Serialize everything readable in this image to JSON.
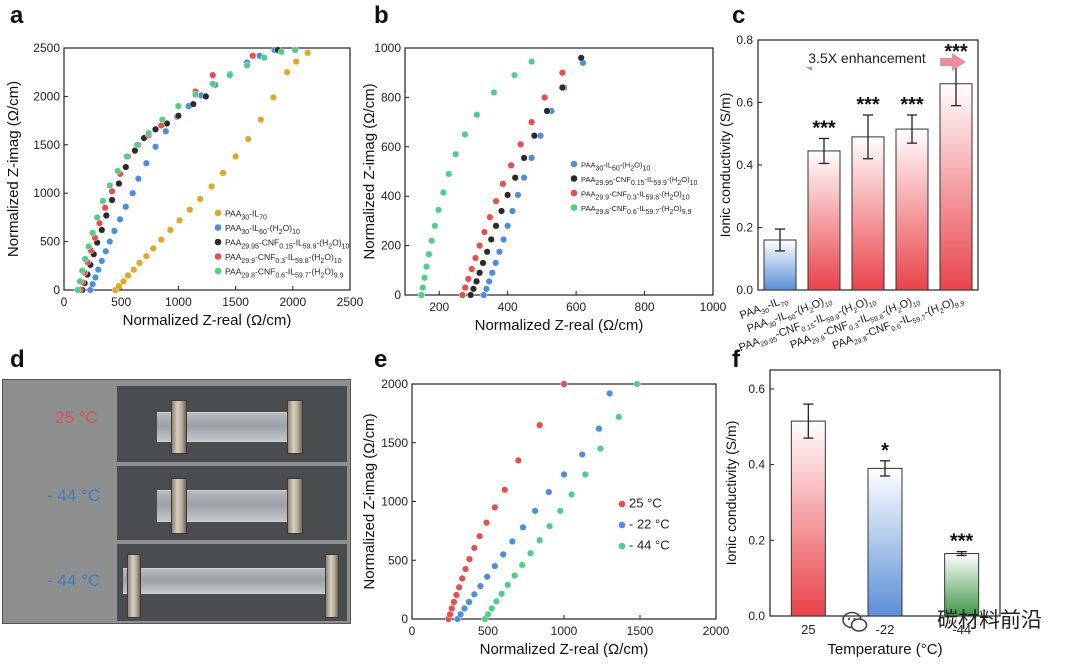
{
  "panels": {
    "a": "a",
    "b": "b",
    "c": "c",
    "d": "d",
    "e": "e",
    "f": "f"
  },
  "photo": {
    "labels": [
      {
        "text": "25 °C",
        "color": "#e0504a"
      },
      {
        "text": "- 44 °C",
        "color": "#3f7bbf"
      },
      {
        "text": "- 44 °C",
        "color": "#3f7bbf"
      }
    ]
  },
  "watermark": {
    "text": "碳材料前沿",
    "icon": "wechat-icon"
  },
  "colors": {
    "yellow": "#e3a81e",
    "blue": "#4a8ee0",
    "black": "#2a2a2a",
    "red": "#ec4b4b",
    "green": "#4fcf86",
    "bar_red": "#e9424a",
    "bar_blue": "#5b8fd8",
    "bar_green": "#3f9448"
  },
  "chart_data": [
    {
      "type": "scatter",
      "panel": "a",
      "xlabel": "Normalized Z-real (Ω/cm)",
      "ylabel": "Normalized Z-imag (Ω/cm)",
      "xlim": [
        0,
        2500
      ],
      "ylim": [
        0,
        2500
      ],
      "xticks": [
        "0",
        "500",
        "1000",
        "1500",
        "2000",
        "2500"
      ],
      "yticks": [
        "0",
        "500",
        "1000",
        "1500",
        "2000",
        "2500"
      ],
      "legend_position": "center-right",
      "series": [
        {
          "name": "PAA30-IL70",
          "label_main": "PAA",
          "label_sub": "30",
          "label_rest": "-IL",
          "label_sub2": "70",
          "color": "#e3a81e",
          "x": [
            450,
            480,
            520,
            560,
            610,
            660,
            720,
            780,
            850,
            930,
            1010,
            1100,
            1190,
            1290,
            1390,
            1500,
            1610,
            1720,
            1830,
            1950,
            2030,
            2130
          ],
          "y": [
            0,
            40,
            90,
            150,
            210,
            280,
            350,
            430,
            520,
            620,
            720,
            830,
            940,
            1070,
            1210,
            1380,
            1560,
            1760,
            1990,
            2250,
            2360,
            2450
          ]
        },
        {
          "name": "PAA30-IL60-(H2O)10",
          "color": "#4a8ee0",
          "x": [
            230,
            250,
            275,
            300,
            330,
            365,
            400,
            440,
            490,
            540,
            600,
            650,
            720,
            800,
            890,
            990,
            1090,
            1200,
            1320,
            1450,
            1600,
            1710,
            1840
          ],
          "y": [
            0,
            60,
            130,
            210,
            300,
            400,
            500,
            610,
            730,
            860,
            1000,
            1150,
            1310,
            1480,
            1640,
            1790,
            1900,
            2010,
            2120,
            2230,
            2350,
            2420,
            2480
          ]
        },
        {
          "name": "PAA29.95-CNF0.15-IL59.9-(H2O)10",
          "color": "#2a2a2a",
          "x": [
            160,
            180,
            205,
            230,
            260,
            290,
            330,
            370,
            420,
            480,
            540,
            620,
            700,
            800,
            900,
            1000,
            1130,
            1240,
            1870
          ],
          "y": [
            0,
            70,
            160,
            260,
            370,
            490,
            620,
            770,
            930,
            1100,
            1270,
            1440,
            1570,
            1660,
            1720,
            1800,
            1920,
            2000,
            2480
          ]
        },
        {
          "name": "PAA29.9-CNF0.3-IL59.8-(H2O)10",
          "color": "#ec4b4b",
          "x": [
            140,
            160,
            180,
            205,
            235,
            270,
            310,
            360,
            420,
            490,
            560,
            650,
            740,
            850,
            1000,
            1150,
            1300,
            1650
          ],
          "y": [
            0,
            80,
            180,
            290,
            410,
            540,
            690,
            850,
            1020,
            1200,
            1380,
            1500,
            1600,
            1700,
            1900,
            2050,
            2220,
            2420
          ]
        },
        {
          "name": "PAA29.8-CNF0.6-IL59.7-(H2O)9.9",
          "color": "#4fcf86",
          "x": [
            120,
            140,
            160,
            185,
            215,
            250,
            290,
            340,
            400,
            470,
            550,
            640,
            740,
            860,
            1000,
            1150,
            1300,
            1450,
            1600,
            1750,
            1900,
            2020
          ],
          "y": [
            0,
            90,
            200,
            320,
            450,
            590,
            750,
            920,
            1080,
            1230,
            1380,
            1500,
            1620,
            1760,
            1900,
            2020,
            2130,
            2220,
            2320,
            2400,
            2460,
            2480
          ]
        }
      ]
    },
    {
      "type": "scatter",
      "panel": "b",
      "xlabel": "Normalized Z-real (Ω/cm)",
      "ylabel": "Normalized Z-imag (Ω/cm)",
      "xlim": [
        100,
        1000
      ],
      "ylim": [
        0,
        1000
      ],
      "xticks": [
        "200",
        "400",
        "600",
        "800",
        "1000"
      ],
      "yticks": [
        "0",
        "200",
        "400",
        "600",
        "800",
        "1000"
      ],
      "legend_position": "center-right",
      "series": [
        {
          "name": "PAA30-IL60-(H2O)10",
          "color": "#4a8ee0",
          "x": [
            330,
            338,
            346,
            355,
            365,
            376,
            388,
            400,
            414,
            430,
            448,
            470,
            496,
            528,
            565,
            620
          ],
          "y": [
            0,
            25,
            55,
            90,
            130,
            175,
            225,
            280,
            340,
            405,
            475,
            555,
            645,
            745,
            840,
            940
          ]
        },
        {
          "name": "PAA29.95-CNF0.15-IL59.9-(H2O)10",
          "color": "#2a2a2a",
          "x": [
            292,
            300,
            309,
            318,
            328,
            340,
            352,
            366,
            382,
            400,
            422,
            448,
            478,
            515,
            560,
            615
          ],
          "y": [
            0,
            25,
            55,
            90,
            130,
            175,
            225,
            280,
            340,
            405,
            475,
            555,
            645,
            745,
            840,
            960
          ]
        },
        {
          "name": "PAA29.9-CNF0.3-IL59.8-(H2O)10",
          "color": "#ec4b4b",
          "x": [
            268,
            276,
            285,
            295,
            306,
            318,
            332,
            348,
            366,
            386,
            410,
            438,
            470,
            508,
            560
          ],
          "y": [
            0,
            30,
            65,
            105,
            150,
            200,
            255,
            315,
            380,
            450,
            525,
            610,
            700,
            800,
            900
          ]
        },
        {
          "name": "PAA29.8-CNF0.6-IL59.7-(H2O)9.9",
          "color": "#4fcf86",
          "x": [
            148,
            152,
            157,
            163,
            170,
            178,
            187,
            198,
            212,
            228,
            248,
            275,
            310,
            360,
            420,
            470
          ],
          "y": [
            0,
            30,
            70,
            115,
            165,
            220,
            280,
            345,
            415,
            490,
            570,
            650,
            730,
            820,
            890,
            945
          ]
        }
      ]
    },
    {
      "type": "bar",
      "panel": "c",
      "ylabel": "Ionic conductivity (S/m)",
      "ylim": [
        0,
        0.8
      ],
      "yticks": [
        "0.0",
        "0.2",
        "0.4",
        "0.6",
        "0.8"
      ],
      "annotation": "3.5X enhancement",
      "categories": [
        "PAA30-IL70",
        "PAA30-IL60-(H2O)10",
        "PAA29.95-CNF0.15-IL59.9-(H2O)10",
        "PAA29.9-CNF0.3-IL59.8-(H2O)10",
        "PAA29.8-CNF0.6-IL59.7-(H2O)9.9"
      ],
      "values": [
        0.16,
        0.445,
        0.49,
        0.515,
        0.66
      ],
      "errors": [
        0.035,
        0.04,
        0.07,
        0.045,
        0.07
      ],
      "significance": [
        "",
        "***",
        "***",
        "***",
        "***"
      ]
    },
    {
      "type": "scatter",
      "panel": "e",
      "xlabel": "Normalized Z-real (Ω/cm)",
      "ylabel": "Normalized Z-imag (Ω/cm)",
      "xlim": [
        0,
        2000
      ],
      "ylim": [
        0,
        2000
      ],
      "xticks": [
        "0",
        "500",
        "1000",
        "1500",
        "2000"
      ],
      "yticks": [
        "0",
        "500",
        "1000",
        "1500",
        "2000"
      ],
      "legend_position": "center-right",
      "series": [
        {
          "name": "25 °C",
          "color": "#ec4b4b",
          "x": [
            240,
            250,
            262,
            276,
            292,
            310,
            330,
            352,
            378,
            410,
            445,
            490,
            545,
            610,
            700,
            840,
            1000
          ],
          "y": [
            0,
            40,
            90,
            145,
            205,
            270,
            345,
            425,
            510,
            605,
            705,
            820,
            950,
            1100,
            1350,
            1650,
            2000
          ]
        },
        {
          "name": "- 22 °C",
          "color": "#4a8ee0",
          "x": [
            300,
            320,
            345,
            375,
            410,
            450,
            495,
            545,
            600,
            660,
            730,
            810,
            900,
            1000,
            1120,
            1230,
            1300
          ],
          "y": [
            0,
            40,
            90,
            145,
            210,
            280,
            360,
            450,
            550,
            660,
            780,
            920,
            1080,
            1230,
            1400,
            1620,
            1920
          ]
        },
        {
          "name": "- 44 °C",
          "color": "#4fcf86",
          "x": [
            480,
            500,
            525,
            555,
            590,
            630,
            675,
            725,
            780,
            840,
            905,
            975,
            1050,
            1140,
            1240,
            1360,
            1480
          ],
          "y": [
            0,
            40,
            90,
            150,
            215,
            290,
            370,
            460,
            560,
            670,
            790,
            920,
            1060,
            1230,
            1450,
            1720,
            2000
          ]
        }
      ]
    },
    {
      "type": "bar",
      "panel": "f",
      "xlabel": "Temperature (°C)",
      "ylabel": "Ionic conductivity (S/m)",
      "ylim": [
        0,
        0.65
      ],
      "yticks": [
        "0.0",
        "0.2",
        "0.4",
        "0.6"
      ],
      "categories": [
        "25",
        "-22",
        "-44"
      ],
      "values": [
        0.515,
        0.39,
        0.165
      ],
      "errors": [
        0.045,
        0.02,
        0.005
      ],
      "significance": [
        "",
        "*",
        "***"
      ]
    }
  ]
}
